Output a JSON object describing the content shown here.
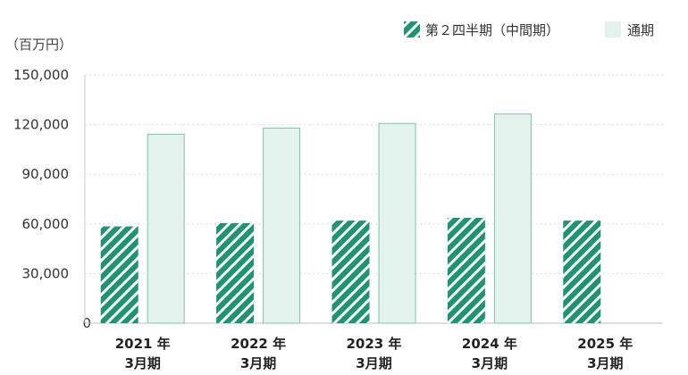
{
  "chart_data": {
    "type": "bar",
    "unit_label": "（百万円）",
    "categories": [
      {
        "line1": "2021 年",
        "line2": "3月期"
      },
      {
        "line1": "2022 年",
        "line2": "3月期"
      },
      {
        "line1": "2023 年",
        "line2": "3月期"
      },
      {
        "line1": "2024 年",
        "line2": "3月期"
      },
      {
        "line1": "2025 年",
        "line2": "3月期"
      }
    ],
    "series": [
      {
        "name": "第２四半期（中間期）",
        "values": [
          58500,
          60500,
          62000,
          63700,
          62000
        ],
        "color": "#1f9470",
        "pattern": "diagonal-stripes"
      },
      {
        "name": "通期",
        "values": [
          114500,
          118200,
          121000,
          126700,
          null
        ],
        "color": "#e3f2ec",
        "border": "#7fc4a6"
      }
    ],
    "ylim": [
      0,
      150000
    ],
    "yticks": [
      "0",
      "30,000",
      "60,000",
      "90,000",
      "120,000",
      "150,000"
    ],
    "ytick_values": [
      0,
      30000,
      60000,
      90000,
      120000,
      150000
    ],
    "grid": true,
    "legend_position": "top-right"
  }
}
